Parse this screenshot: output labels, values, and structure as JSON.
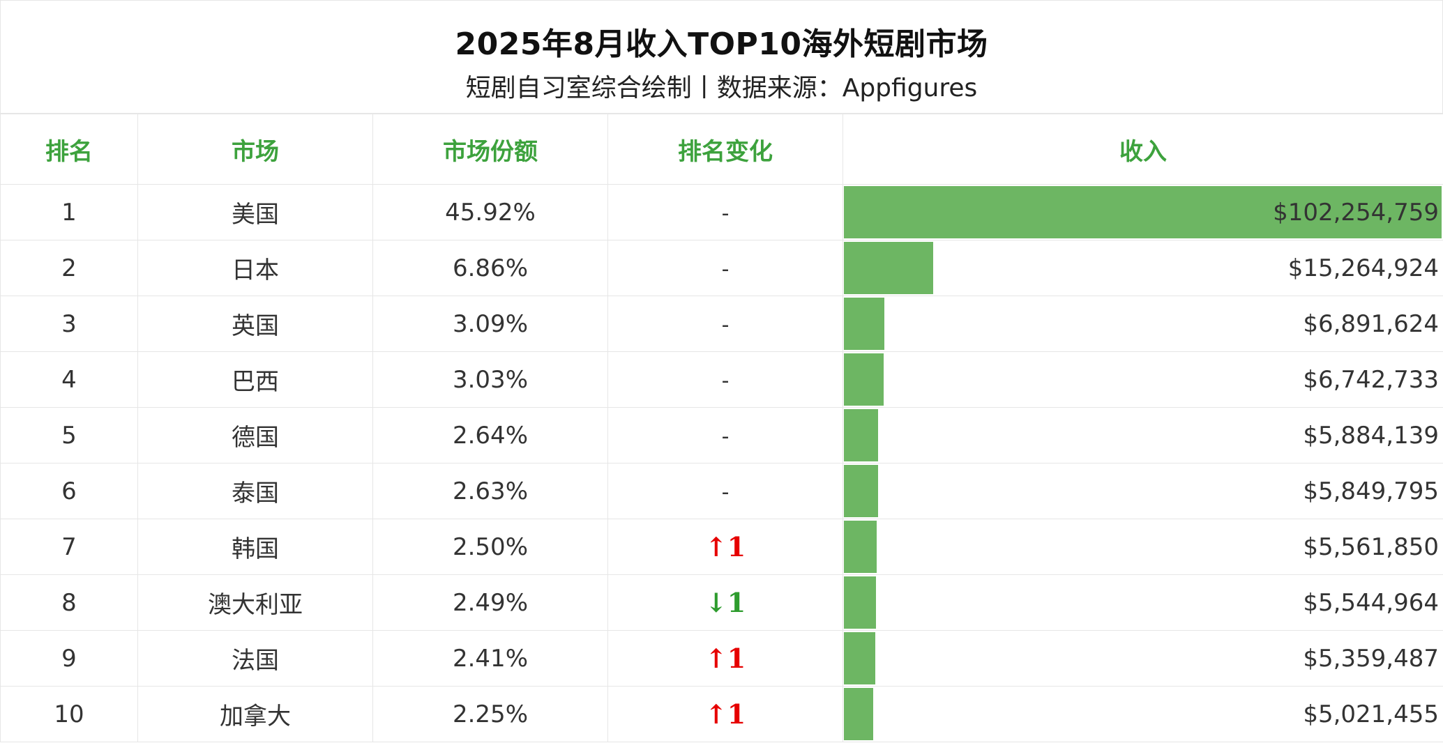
{
  "title": "2025年8月收入TOP10海外短剧市场",
  "subtitle": "短剧自习室综合绘制丨数据来源：Appfigures",
  "headers": {
    "rank": "排名",
    "market": "市场",
    "share": "市场份额",
    "rank_change": "排名变化",
    "revenue": "收入"
  },
  "colors": {
    "bar": "#6db663",
    "header_text": "#3da23d",
    "up": "#e60000",
    "down": "#2e9c2e"
  },
  "chart_data": {
    "type": "table",
    "columns": [
      "排名",
      "市场",
      "市场份额",
      "排名变化",
      "收入"
    ],
    "bar_column": "收入",
    "bar_max": 102254759,
    "rows": [
      {
        "rank": "1",
        "market": "美国",
        "share": "45.92%",
        "change": "-",
        "change_dir": "same",
        "revenue": 102254759,
        "revenue_label": "$102,254,759"
      },
      {
        "rank": "2",
        "market": "日本",
        "share": "6.86%",
        "change": "-",
        "change_dir": "same",
        "revenue": 15264924,
        "revenue_label": "$15,264,924"
      },
      {
        "rank": "3",
        "market": "英国",
        "share": "3.09%",
        "change": "-",
        "change_dir": "same",
        "revenue": 6891624,
        "revenue_label": "$6,891,624"
      },
      {
        "rank": "4",
        "market": "巴西",
        "share": "3.03%",
        "change": "-",
        "change_dir": "same",
        "revenue": 6742733,
        "revenue_label": "$6,742,733"
      },
      {
        "rank": "5",
        "market": "德国",
        "share": "2.64%",
        "change": "-",
        "change_dir": "same",
        "revenue": 5884139,
        "revenue_label": "$5,884,139"
      },
      {
        "rank": "6",
        "market": "泰国",
        "share": "2.63%",
        "change": "-",
        "change_dir": "same",
        "revenue": 5849795,
        "revenue_label": "$5,849,795"
      },
      {
        "rank": "7",
        "market": "韩国",
        "share": "2.50%",
        "change": "↑1",
        "change_dir": "up",
        "revenue": 5561850,
        "revenue_label": "$5,561,850"
      },
      {
        "rank": "8",
        "market": "澳大利亚",
        "share": "2.49%",
        "change": "↓1",
        "change_dir": "down",
        "revenue": 5544964,
        "revenue_label": "$5,544,964"
      },
      {
        "rank": "9",
        "market": "法国",
        "share": "2.41%",
        "change": "↑1",
        "change_dir": "up",
        "revenue": 5359487,
        "revenue_label": "$5,359,487"
      },
      {
        "rank": "10",
        "market": "加拿大",
        "share": "2.25%",
        "change": "↑1",
        "change_dir": "up",
        "revenue": 5021455,
        "revenue_label": "$5,021,455"
      }
    ]
  }
}
